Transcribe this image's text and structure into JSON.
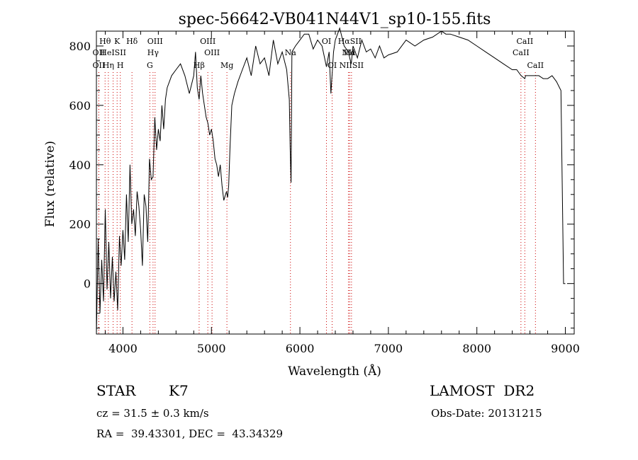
{
  "chart_data": {
    "type": "line",
    "title": "spec-56642-VB041N44V1_sp10-155.fits",
    "xlabel": "Wavelength (Å)",
    "ylabel": "Flux (relative)",
    "xlim": [
      3700,
      9100
    ],
    "ylim": [
      -170,
      850
    ],
    "x_ticks": [
      4000,
      5000,
      6000,
      7000,
      8000,
      9000
    ],
    "x_tick_labels": [
      "4000",
      "5000",
      "6000",
      "7000",
      "8000",
      "9000"
    ],
    "y_ticks": [
      0,
      200,
      400,
      600,
      800
    ],
    "y_tick_labels": [
      "0",
      "200",
      "400",
      "600",
      "800"
    ],
    "grid": false,
    "line_color": "#000000",
    "marker_color": "#cc0000",
    "series": [
      {
        "x": [
          3700,
          3720,
          3740,
          3760,
          3780,
          3800,
          3820,
          3840,
          3860,
          3880,
          3900,
          3920,
          3940,
          3960,
          3980,
          4000,
          4020,
          4040,
          4060,
          4080,
          4100,
          4120,
          4140,
          4160,
          4180,
          4200,
          4220,
          4240,
          4260,
          4280,
          4300,
          4320,
          4340,
          4360,
          4380,
          4400,
          4420,
          4440,
          4460,
          4480,
          4500,
          4550,
          4600,
          4650,
          4700,
          4750,
          4800,
          4820,
          4840,
          4861,
          4880,
          4900,
          4920,
          4940,
          4960,
          4980,
          5000,
          5020,
          5040,
          5060,
          5080,
          5100,
          5120,
          5140,
          5160,
          5170,
          5183,
          5195,
          5210,
          5230,
          5260,
          5300,
          5350,
          5400,
          5450,
          5500,
          5550,
          5600,
          5650,
          5700,
          5750,
          5800,
          5850,
          5880,
          5890,
          5896,
          5900,
          5910,
          5950,
          6000,
          6050,
          6100,
          6150,
          6200,
          6250,
          6300,
          6330,
          6350,
          6380,
          6400,
          6450,
          6500,
          6550,
          6563,
          6580,
          6600,
          6650,
          6700,
          6750,
          6800,
          6850,
          6900,
          6950,
          7000,
          7100,
          7200,
          7300,
          7400,
          7500,
          7600,
          7650,
          7700,
          7800,
          7900,
          8000,
          8100,
          8200,
          8300,
          8400,
          8450,
          8500,
          8542,
          8550,
          8600,
          8650,
          8700,
          8750,
          8800,
          8850,
          8900,
          8950,
          8980,
          8990,
          8995,
          9000
        ],
        "values": [
          -170,
          150,
          -100,
          80,
          -60,
          250,
          -20,
          140,
          -50,
          90,
          -60,
          40,
          -90,
          160,
          60,
          180,
          80,
          300,
          140,
          400,
          200,
          250,
          160,
          310,
          260,
          180,
          60,
          300,
          260,
          140,
          420,
          350,
          360,
          560,
          450,
          520,
          480,
          600,
          520,
          620,
          660,
          700,
          720,
          740,
          700,
          640,
          700,
          780,
          660,
          620,
          700,
          640,
          600,
          560,
          540,
          500,
          520,
          480,
          420,
          400,
          360,
          400,
          330,
          280,
          300,
          310,
          290,
          330,
          460,
          600,
          640,
          680,
          720,
          760,
          700,
          800,
          740,
          760,
          700,
          820,
          740,
          780,
          720,
          620,
          460,
          380,
          340,
          780,
          800,
          820,
          840,
          840,
          790,
          820,
          800,
          730,
          780,
          640,
          780,
          820,
          860,
          800,
          780,
          760,
          740,
          800,
          760,
          820,
          780,
          790,
          760,
          800,
          760,
          770,
          780,
          820,
          800,
          820,
          830,
          850,
          840,
          840,
          830,
          820,
          800,
          780,
          760,
          740,
          720,
          720,
          700,
          690,
          700,
          700,
          700,
          700,
          690,
          690,
          700,
          680,
          650,
          0,
          0,
          0,
          0
        ]
      }
    ],
    "line_markers": [
      {
        "label": "Hθ",
        "x": 3798,
        "row": 0
      },
      {
        "label": "K",
        "x": 3934,
        "row": 0
      },
      {
        "label": "Hδ",
        "x": 4102,
        "row": 0
      },
      {
        "label": "OIII",
        "x": 4363,
        "row": 0
      },
      {
        "label": "OIII",
        "x": 4959,
        "row": 0
      },
      {
        "label": "OI",
        "x": 6300,
        "row": 0
      },
      {
        "label": "HαSII",
        "x": 6563,
        "row": 0
      },
      {
        "label": "CaII",
        "x": 8542,
        "row": 0
      },
      {
        "label": "OII",
        "x": 3727,
        "row": 1
      },
      {
        "label": "HeISII",
        "x": 3889,
        "row": 1
      },
      {
        "label": "Hγ",
        "x": 4340,
        "row": 1
      },
      {
        "label": "OIII",
        "x": 5007,
        "row": 1
      },
      {
        "label": "Na",
        "x": 5893,
        "row": 1
      },
      {
        "label": "NII",
        "x": 6548,
        "row": 1
      },
      {
        "label": "Hα",
        "x": 6563,
        "row": 1
      },
      {
        "label": "CaII",
        "x": 8498,
        "row": 1
      },
      {
        "label": "OII",
        "x": 3727,
        "row": 2
      },
      {
        "label": "Hη",
        "x": 3835,
        "row": 2
      },
      {
        "label": "H",
        "x": 3970,
        "row": 2
      },
      {
        "label": "G",
        "x": 4304,
        "row": 2
      },
      {
        "label": "Hβ",
        "x": 4861,
        "row": 2
      },
      {
        "label": "Mg",
        "x": 5175,
        "row": 2
      },
      {
        "label": "OI",
        "x": 6364,
        "row": 2
      },
      {
        "label": "NIISII",
        "x": 6583,
        "row": 2
      },
      {
        "label": "CaII",
        "x": 8662,
        "row": 2
      }
    ]
  },
  "info": {
    "object_type": "STAR",
    "subclass": "K7",
    "survey": "LAMOST  DR2",
    "cz": "cz = 31.5 ± 0.3 km/s",
    "obs_date": "Obs-Date: 20131215",
    "coords": "RA =  39.43301, DEC =  43.34329"
  }
}
